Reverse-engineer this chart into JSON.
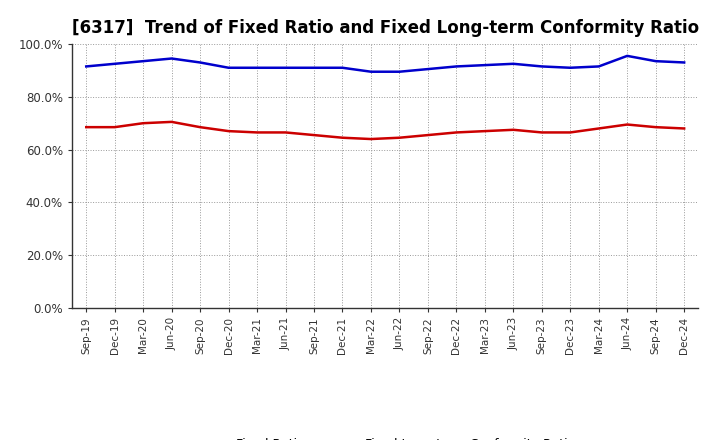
{
  "title": "[6317]  Trend of Fixed Ratio and Fixed Long-term Conformity Ratio",
  "x_labels": [
    "Sep-19",
    "Dec-19",
    "Mar-20",
    "Jun-20",
    "Sep-20",
    "Dec-20",
    "Mar-21",
    "Jun-21",
    "Sep-21",
    "Dec-21",
    "Mar-22",
    "Jun-22",
    "Sep-22",
    "Dec-22",
    "Mar-23",
    "Jun-23",
    "Sep-23",
    "Dec-23",
    "Mar-24",
    "Jun-24",
    "Sep-24",
    "Dec-24"
  ],
  "fixed_ratio": [
    91.5,
    92.5,
    93.5,
    94.5,
    93.0,
    91.0,
    91.0,
    91.0,
    91.0,
    91.0,
    89.5,
    89.5,
    90.5,
    91.5,
    92.0,
    92.5,
    91.5,
    91.0,
    91.5,
    95.5,
    93.5,
    93.0
  ],
  "fixed_lt_ratio": [
    68.5,
    68.5,
    70.0,
    70.5,
    68.5,
    67.0,
    66.5,
    66.5,
    65.5,
    64.5,
    64.0,
    64.5,
    65.5,
    66.5,
    67.0,
    67.5,
    66.5,
    66.5,
    68.0,
    69.5,
    68.5,
    68.0
  ],
  "fixed_ratio_color": "#0000CC",
  "fixed_lt_ratio_color": "#CC0000",
  "ylim": [
    0,
    100
  ],
  "yticks": [
    0,
    20,
    40,
    60,
    80,
    100
  ],
  "ytick_labels": [
    "0.0%",
    "20.0%",
    "40.0%",
    "60.0%",
    "80.0%",
    "100.0%"
  ],
  "background_color": "#FFFFFF",
  "plot_bg_color": "#FFFFFF",
  "grid_color": "#999999",
  "legend_fixed": "Fixed Ratio",
  "legend_lt": "Fixed Long-term Conformity Ratio",
  "title_fontsize": 12,
  "line_width": 1.8
}
